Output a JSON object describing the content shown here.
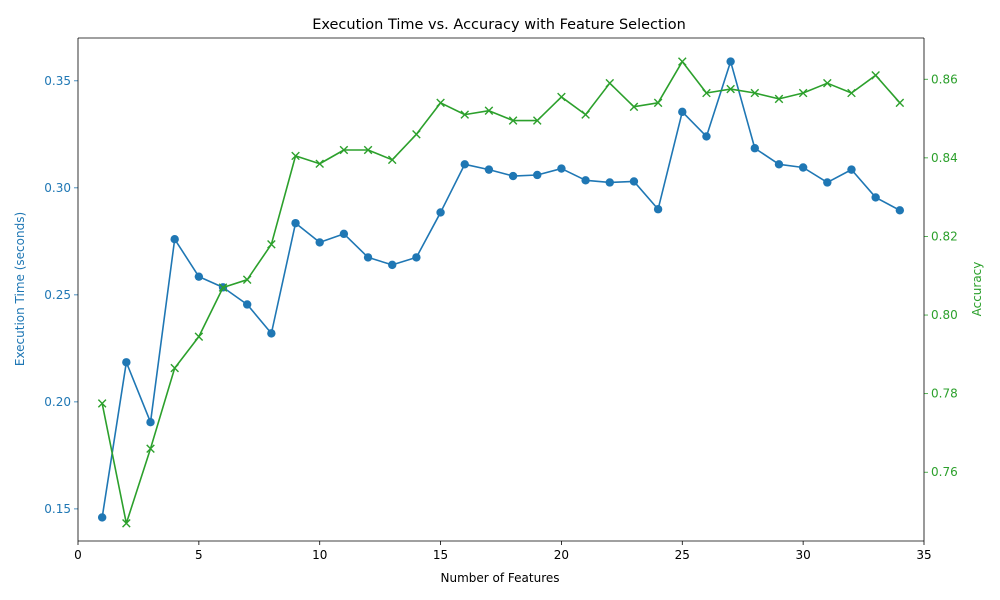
{
  "chart_data": {
    "type": "line",
    "title": "Execution Time vs. Accuracy with Feature Selection",
    "xlabel": "Number of Features",
    "xlim": [
      0,
      35
    ],
    "xticks": [
      0,
      5,
      10,
      15,
      20,
      25,
      30,
      35
    ],
    "x": [
      1,
      2,
      3,
      4,
      5,
      6,
      7,
      8,
      9,
      10,
      11,
      12,
      13,
      14,
      15,
      16,
      17,
      18,
      19,
      20,
      21,
      22,
      23,
      24,
      25,
      26,
      27,
      28,
      29,
      30,
      31,
      32,
      33,
      34
    ],
    "grid": false,
    "legend": "none",
    "axes": {
      "left": {
        "label": "Execution Time (seconds)",
        "ylim": [
          0.135,
          0.37
        ],
        "ticks": [
          0.15,
          0.2,
          0.25,
          0.3,
          0.35
        ],
        "tick_labels": [
          "0.15",
          "0.20",
          "0.25",
          "0.30",
          "0.35"
        ],
        "color": "#1f77b4"
      },
      "right": {
        "label": "Accuracy",
        "ylim": [
          0.7425,
          0.8705
        ],
        "ticks": [
          0.76,
          0.78,
          0.8,
          0.82,
          0.84,
          0.86
        ],
        "tick_labels": [
          "0.76",
          "0.78",
          "0.80",
          "0.82",
          "0.84",
          "0.86"
        ],
        "color": "#2ca02c"
      }
    },
    "series": [
      {
        "axis": "left",
        "marker": "circle",
        "color": "#1f77b4",
        "values": [
          0.146,
          0.2185,
          0.1905,
          0.276,
          0.2585,
          0.2535,
          0.2455,
          0.232,
          0.2835,
          0.2745,
          0.2785,
          0.2675,
          0.264,
          0.2675,
          0.2885,
          0.311,
          0.3085,
          0.3055,
          0.306,
          0.309,
          0.3035,
          0.3025,
          0.303,
          0.29,
          0.3355,
          0.324,
          0.359,
          0.3185,
          0.311,
          0.3095,
          0.3025,
          0.3085,
          0.2955,
          0.2895
        ]
      },
      {
        "axis": "right",
        "marker": "x",
        "color": "#2ca02c",
        "values": [
          0.7775,
          0.747,
          0.766,
          0.7865,
          0.7945,
          0.807,
          0.809,
          0.818,
          0.8405,
          0.8385,
          0.842,
          0.842,
          0.8395,
          0.846,
          0.854,
          0.851,
          0.852,
          0.8495,
          0.8495,
          0.8555,
          0.851,
          0.859,
          0.853,
          0.854,
          0.8645,
          0.8565,
          0.8575,
          0.8565,
          0.855,
          0.8565,
          0.859,
          0.8565,
          0.861,
          0.854
        ]
      }
    ]
  }
}
